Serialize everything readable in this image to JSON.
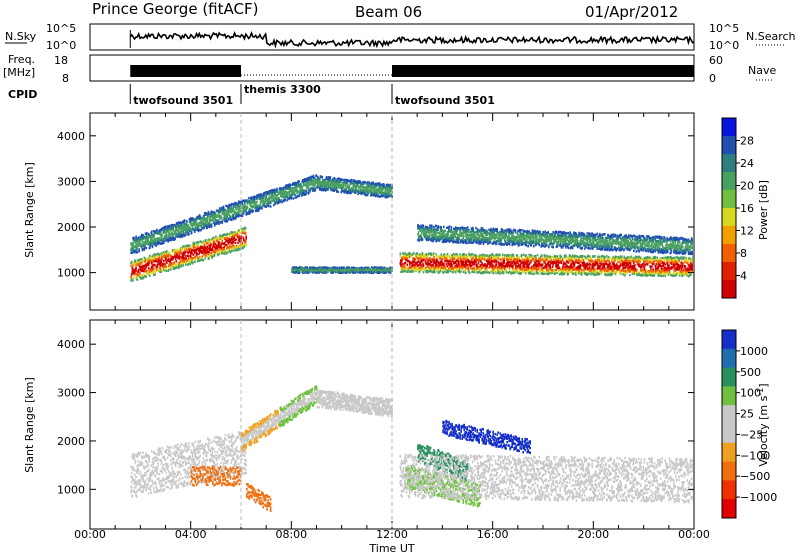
{
  "header": {
    "station": "Prince George (fitACF)",
    "beam": "Beam 06",
    "date": "01/Apr/2012"
  },
  "colors": {
    "power_scale": [
      "#0a14e0",
      "#1f4fb0",
      "#2f7f80",
      "#4aa060",
      "#6fc040",
      "#d8d820",
      "#f0a000",
      "#f06000",
      "#e02000",
      "#d00000"
    ],
    "velocity_scale": [
      "#1530c8",
      "#1f6fb0",
      "#2a9060",
      "#6fc040",
      "#c8c8c8",
      "#c8c8c8",
      "#f0a020",
      "#f07010",
      "#f03000",
      "#e00000"
    ]
  },
  "chart_data": [
    {
      "type": "line",
      "name": "noise-panel",
      "left_label": "N.Sky",
      "right_label": "N.Search",
      "y_ticks_left": [
        "10^5",
        "10^0"
      ],
      "y_ticks_right": [
        "10^5",
        "10^0"
      ],
      "x_range_hours": [
        0,
        24
      ],
      "data_start_hours": 1.6
    },
    {
      "type": "line",
      "name": "freq-nave-panel",
      "left_label": "Freq.",
      "left_unit": "[MHz]",
      "right_label": "Nave",
      "y_ticks_left": [
        "18",
        "8"
      ],
      "y_ticks_right": [
        "60",
        "0"
      ],
      "x_range_hours": [
        0,
        24
      ]
    },
    {
      "type": "table",
      "name": "cpid",
      "label": "CPID",
      "segments": [
        {
          "label": "twofsound 3501",
          "start": 1.6,
          "end": 6.0
        },
        {
          "label": "themis 3300",
          "start": 6.0,
          "end": 12.0
        },
        {
          "label": "twofsound 3501",
          "start": 12.0,
          "end": 24.0
        }
      ]
    },
    {
      "type": "heatmap",
      "name": "power",
      "ylabel": "Slant Range [km]",
      "xlim": [
        0,
        24
      ],
      "ylim": [
        180,
        4500
      ],
      "y_ticks": [
        1000,
        2000,
        3000,
        4000
      ],
      "colorbar_label": "Power [dB]",
      "colorbar_ticks": [
        "28",
        "24",
        "20",
        "16",
        "12",
        "8",
        "4"
      ]
    },
    {
      "type": "heatmap",
      "name": "velocity",
      "ylabel": "Slant Range [km]",
      "xlabel": "Time UT",
      "xlim": [
        0,
        24
      ],
      "ylim": [
        180,
        4500
      ],
      "y_ticks": [
        1000,
        2000,
        3000,
        4000
      ],
      "x_ticks": [
        "00:00",
        "04:00",
        "08:00",
        "12:00",
        "16:00",
        "20:00",
        "00:00"
      ],
      "colorbar_label": "Velocity [m s",
      "colorbar_label_exp": "-1",
      "colorbar_ticks": [
        "1000",
        "500",
        "100",
        "25",
        "−25",
        "−100",
        "−500",
        "−1000"
      ]
    }
  ]
}
